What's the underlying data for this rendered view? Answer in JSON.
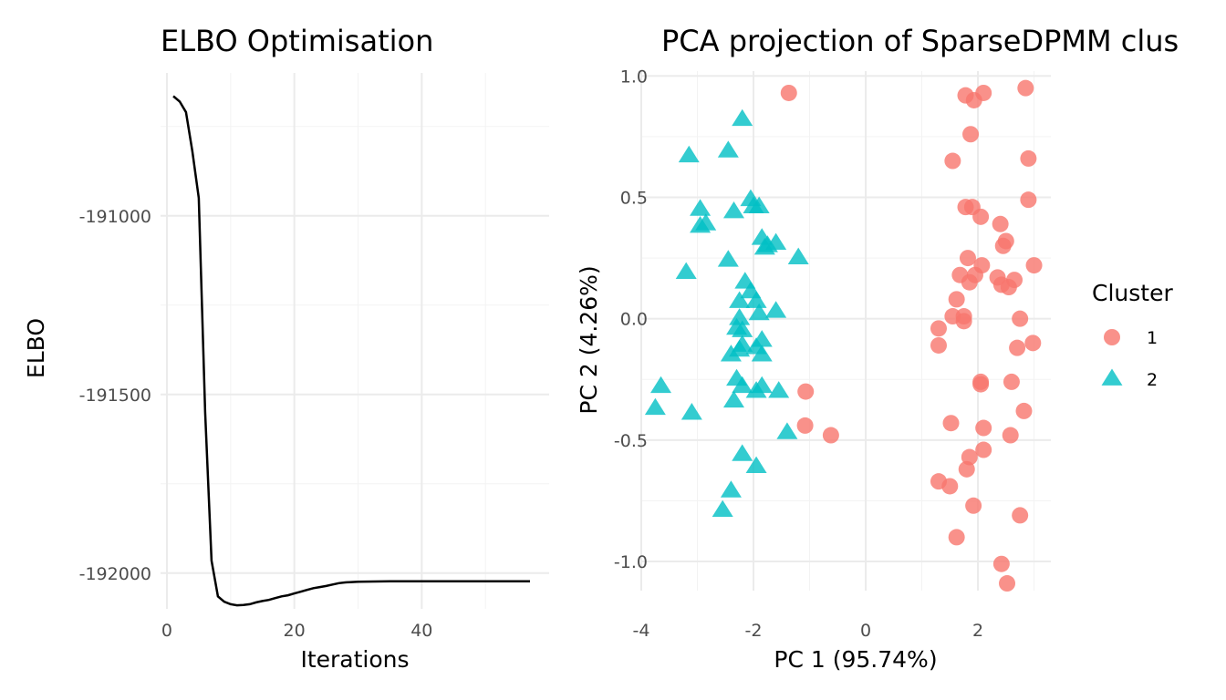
{
  "chart_data": [
    {
      "type": "line",
      "title": "ELBO Optimisation",
      "xlabel": "Iterations",
      "ylabel": "ELBO",
      "xlim": [
        -1,
        60
      ],
      "ylim": [
        -192100,
        -190600
      ],
      "xticks": [
        0,
        20,
        40
      ],
      "yticks": [
        -192000,
        -191500,
        -191000
      ],
      "grid": true,
      "series": [
        {
          "color": "#000000",
          "x": [
            1,
            2,
            3,
            4,
            5,
            6,
            7,
            8,
            9,
            10,
            11,
            12,
            13,
            14,
            15,
            16,
            17,
            18,
            19,
            20,
            21,
            22,
            23,
            24,
            25,
            26,
            27,
            28,
            29,
            30,
            35,
            40,
            45,
            50,
            55,
            57
          ],
          "y": [
            -190665,
            -190680,
            -190710,
            -190820,
            -190950,
            -191550,
            -191965,
            -192065,
            -192080,
            -192087,
            -192090,
            -192089,
            -192087,
            -192082,
            -192078,
            -192075,
            -192070,
            -192065,
            -192062,
            -192057,
            -192052,
            -192047,
            -192042,
            -192039,
            -192036,
            -192032,
            -192028,
            -192026,
            -192025,
            -192024,
            -192023,
            -192023,
            -192023,
            -192023,
            -192023,
            -192023
          ]
        }
      ]
    },
    {
      "type": "scatter",
      "title": "PCA projection of SparseDPMM clus",
      "xlabel": "PC 1 (95.74%)",
      "ylabel": "PC 2 (4.26%)",
      "xlim": [
        -4.0,
        3.3
      ],
      "ylim": [
        -1.12,
        1.02
      ],
      "xticks": [
        -4,
        -2,
        0,
        2
      ],
      "yticks": [
        -1.0,
        -0.5,
        0.0,
        0.5,
        1.0
      ],
      "grid": true,
      "legend": {
        "title": "Cluster",
        "placement": "right",
        "entries": [
          {
            "label": "1",
            "color": "#F8766D",
            "shape": "circle"
          },
          {
            "label": "2",
            "color": "#00BFC4",
            "shape": "triangle"
          }
        ]
      },
      "series": [
        {
          "name": "1",
          "color": "#F8766D",
          "shape": "circle",
          "points": [
            [
              -1.37,
              0.93
            ],
            [
              1.78,
              0.92
            ],
            [
              1.93,
              0.9
            ],
            [
              2.1,
              0.93
            ],
            [
              2.85,
              0.95
            ],
            [
              1.87,
              0.76
            ],
            [
              1.55,
              0.65
            ],
            [
              2.9,
              0.66
            ],
            [
              1.78,
              0.46
            ],
            [
              1.9,
              0.46
            ],
            [
              2.05,
              0.42
            ],
            [
              2.9,
              0.49
            ],
            [
              2.4,
              0.39
            ],
            [
              2.45,
              0.3
            ],
            [
              2.5,
              0.32
            ],
            [
              1.82,
              0.25
            ],
            [
              2.07,
              0.22
            ],
            [
              3.0,
              0.22
            ],
            [
              1.68,
              0.18
            ],
            [
              1.95,
              0.18
            ],
            [
              1.85,
              0.15
            ],
            [
              2.35,
              0.17
            ],
            [
              2.42,
              0.14
            ],
            [
              2.55,
              0.13
            ],
            [
              2.65,
              0.16
            ],
            [
              1.62,
              0.08
            ],
            [
              1.55,
              0.01
            ],
            [
              1.75,
              0.01
            ],
            [
              1.75,
              -0.01
            ],
            [
              2.75,
              0.0
            ],
            [
              1.3,
              -0.04
            ],
            [
              1.3,
              -0.11
            ],
            [
              2.7,
              -0.12
            ],
            [
              2.98,
              -0.1
            ],
            [
              2.05,
              -0.26
            ],
            [
              2.05,
              -0.27
            ],
            [
              2.6,
              -0.26
            ],
            [
              -1.07,
              -0.3
            ],
            [
              2.82,
              -0.38
            ],
            [
              1.52,
              -0.43
            ],
            [
              2.1,
              -0.45
            ],
            [
              -1.08,
              -0.44
            ],
            [
              -0.62,
              -0.48
            ],
            [
              2.58,
              -0.48
            ],
            [
              2.1,
              -0.54
            ],
            [
              1.85,
              -0.57
            ],
            [
              1.8,
              -0.62
            ],
            [
              1.3,
              -0.67
            ],
            [
              1.5,
              -0.69
            ],
            [
              1.92,
              -0.77
            ],
            [
              2.75,
              -0.81
            ],
            [
              1.62,
              -0.9
            ],
            [
              2.42,
              -1.01
            ],
            [
              2.52,
              -1.09
            ]
          ]
        },
        {
          "name": "2",
          "color": "#00BFC4",
          "shape": "triangle",
          "points": [
            [
              -2.2,
              0.82
            ],
            [
              -3.15,
              0.67
            ],
            [
              -2.45,
              0.69
            ],
            [
              -2.95,
              0.45
            ],
            [
              -2.35,
              0.44
            ],
            [
              -2.05,
              0.49
            ],
            [
              -2.0,
              0.46
            ],
            [
              -1.9,
              0.46
            ],
            [
              -2.95,
              0.38
            ],
            [
              -2.85,
              0.39
            ],
            [
              -1.85,
              0.33
            ],
            [
              -1.6,
              0.31
            ],
            [
              -1.75,
              0.3
            ],
            [
              -1.8,
              0.29
            ],
            [
              -1.2,
              0.25
            ],
            [
              -2.45,
              0.24
            ],
            [
              -3.2,
              0.19
            ],
            [
              -2.15,
              0.15
            ],
            [
              -2.05,
              0.11
            ],
            [
              -1.95,
              0.07
            ],
            [
              -2.25,
              0.07
            ],
            [
              -1.6,
              0.03
            ],
            [
              -1.9,
              0.02
            ],
            [
              -2.25,
              0.0
            ],
            [
              -2.3,
              -0.04
            ],
            [
              -2.2,
              -0.05
            ],
            [
              -1.85,
              -0.09
            ],
            [
              -2.2,
              -0.11
            ],
            [
              -1.95,
              -0.12
            ],
            [
              -2.4,
              -0.15
            ],
            [
              -2.25,
              -0.13
            ],
            [
              -1.85,
              -0.15
            ],
            [
              -2.3,
              -0.25
            ],
            [
              -2.2,
              -0.28
            ],
            [
              -1.95,
              -0.3
            ],
            [
              -1.85,
              -0.28
            ],
            [
              -1.55,
              -0.3
            ],
            [
              -3.65,
              -0.28
            ],
            [
              -3.75,
              -0.37
            ],
            [
              -3.1,
              -0.39
            ],
            [
              -2.35,
              -0.34
            ],
            [
              -1.4,
              -0.47
            ],
            [
              -2.2,
              -0.56
            ],
            [
              -1.95,
              -0.61
            ],
            [
              -2.4,
              -0.71
            ],
            [
              -2.55,
              -0.79
            ]
          ]
        }
      ]
    }
  ]
}
